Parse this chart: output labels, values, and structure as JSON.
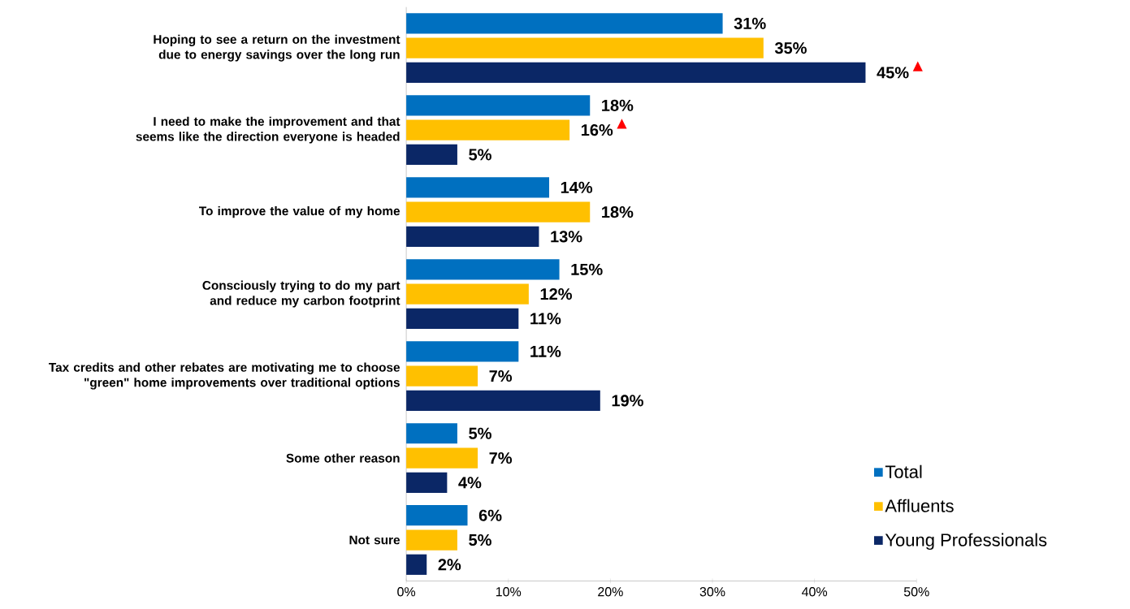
{
  "chart_data": {
    "type": "bar",
    "orientation": "horizontal",
    "categories": [
      "Hoping to see a return on the investment due to energy savings over the long run",
      "I need to make the improvement and that seems like the direction everyone is headed",
      "To improve the value of my home",
      "Consciously trying to do my part and reduce my carbon footprint",
      "Tax credits and other rebates are motivating me to choose \"green\" home improvements over traditional options",
      "Some other reason",
      "Not sure"
    ],
    "series": [
      {
        "name": "Total",
        "color": "#0070c0",
        "values": [
          31,
          18,
          14,
          15,
          11,
          5,
          6
        ],
        "value_labels": [
          "31%",
          "18%",
          "14%",
          "15%",
          "11%",
          "5%",
          "6%"
        ]
      },
      {
        "name": "Affluents",
        "color": "#ffc000",
        "values": [
          35,
          16,
          18,
          12,
          7,
          7,
          5
        ],
        "value_labels": [
          "35%",
          "16%",
          "18%",
          "12%",
          "7%",
          "7%",
          "5%"
        ]
      },
      {
        "name": "Young Professionals",
        "color": "#0b2766",
        "values": [
          45,
          5,
          13,
          11,
          19,
          4,
          2
        ],
        "value_labels": [
          "45%",
          "5%",
          "13%",
          "11%",
          "19%",
          "4%",
          "2%"
        ]
      }
    ],
    "xlim": [
      0,
      50
    ],
    "xticks": [
      {
        "value": 0,
        "label": "0%"
      },
      {
        "value": 10,
        "label": "10%"
      },
      {
        "value": 20,
        "label": "20%"
      },
      {
        "value": 30,
        "label": "30%"
      },
      {
        "value": 40,
        "label": "40%"
      },
      {
        "value": 50,
        "label": "50%"
      }
    ],
    "annotations": [
      "▲",
      "▲"
    ],
    "legend": "bottom right",
    "grid": false
  }
}
